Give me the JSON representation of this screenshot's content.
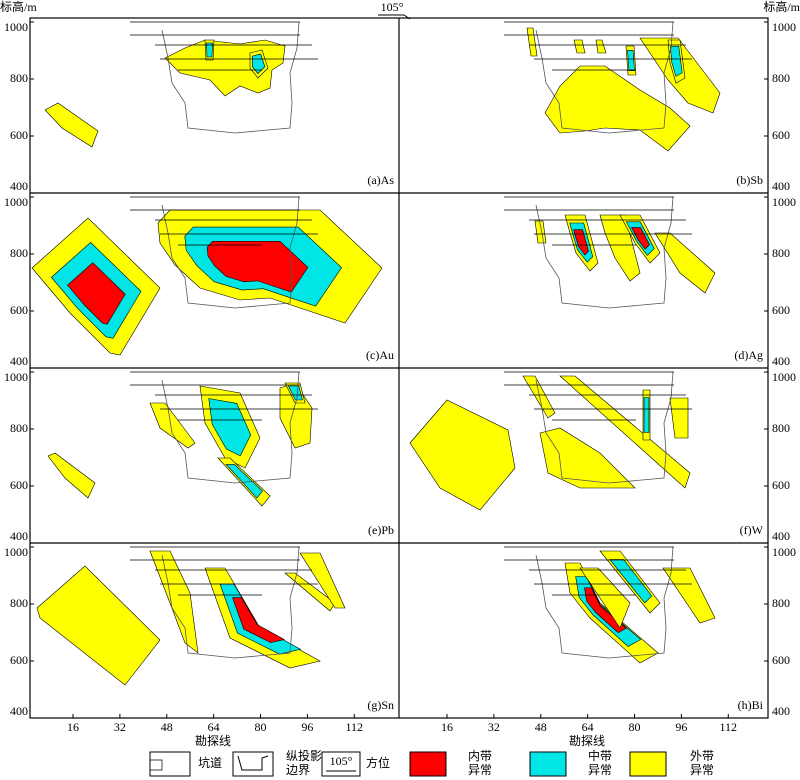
{
  "header": {
    "left_axis_title": "标高/m",
    "right_axis_title": "标高/m",
    "azimuth": "105°"
  },
  "y_ticks": [
    1000,
    800,
    600,
    400
  ],
  "x_ticks": [
    16,
    32,
    48,
    64,
    80,
    96,
    112
  ],
  "x_axis_title": "勘探线",
  "panels": [
    "(a)As",
    "(b)Sb",
    "(c)Au",
    "(d)Ag",
    "(e)Pb",
    "(f)W",
    "(g)Sn",
    "(h)Bi"
  ],
  "legend": [
    {
      "label": [
        "坑道"
      ]
    },
    {
      "label": [
        "纵投影",
        "边界"
      ]
    },
    {
      "label": [
        "方位"
      ]
    },
    {
      "label": [
        "内带",
        "异常"
      ]
    },
    {
      "label": [
        "中带",
        "异常"
      ]
    },
    {
      "label": [
        "外带",
        "异常"
      ]
    }
  ]
}
